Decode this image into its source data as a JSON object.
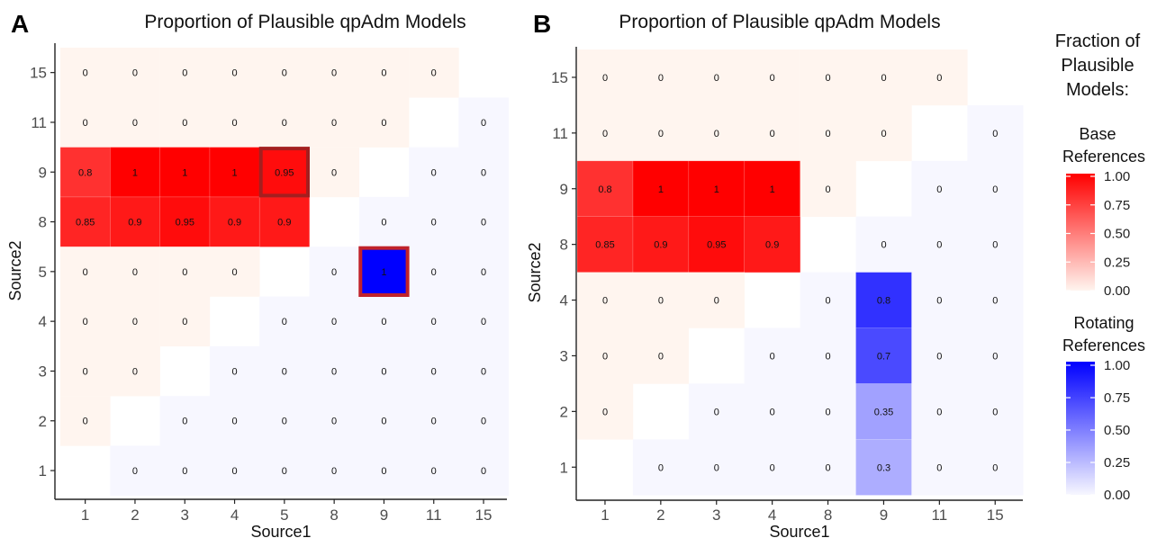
{
  "panels": [
    {
      "letter": "A",
      "chart_data": {
        "type": "heatmap",
        "title": "Proportion of Plausible qpAdm Models",
        "xlabel": "Source1",
        "ylabel": "Source2",
        "x_categories": [
          "1",
          "2",
          "3",
          "4",
          "5",
          "8",
          "9",
          "11",
          "15"
        ],
        "y_categories": [
          "1",
          "2",
          "3",
          "4",
          "5",
          "8",
          "9",
          "11",
          "15"
        ],
        "cells": [
          {
            "x": "1",
            "y": "15",
            "v": 0,
            "s": "base"
          },
          {
            "x": "2",
            "y": "15",
            "v": 0,
            "s": "base"
          },
          {
            "x": "3",
            "y": "15",
            "v": 0,
            "s": "base"
          },
          {
            "x": "4",
            "y": "15",
            "v": 0,
            "s": "base"
          },
          {
            "x": "5",
            "y": "15",
            "v": 0,
            "s": "base"
          },
          {
            "x": "8",
            "y": "15",
            "v": 0,
            "s": "base"
          },
          {
            "x": "9",
            "y": "15",
            "v": 0,
            "s": "base"
          },
          {
            "x": "11",
            "y": "15",
            "v": 0,
            "s": "base"
          },
          {
            "x": "1",
            "y": "11",
            "v": 0,
            "s": "base"
          },
          {
            "x": "2",
            "y": "11",
            "v": 0,
            "s": "base"
          },
          {
            "x": "3",
            "y": "11",
            "v": 0,
            "s": "base"
          },
          {
            "x": "4",
            "y": "11",
            "v": 0,
            "s": "base"
          },
          {
            "x": "5",
            "y": "11",
            "v": 0,
            "s": "base"
          },
          {
            "x": "8",
            "y": "11",
            "v": 0,
            "s": "base"
          },
          {
            "x": "9",
            "y": "11",
            "v": 0,
            "s": "base"
          },
          {
            "x": "15",
            "y": "11",
            "v": 0,
            "s": "rot"
          },
          {
            "x": "1",
            "y": "9",
            "v": 0.8,
            "s": "base"
          },
          {
            "x": "2",
            "y": "9",
            "v": 1,
            "s": "base"
          },
          {
            "x": "3",
            "y": "9",
            "v": 1,
            "s": "base"
          },
          {
            "x": "4",
            "y": "9",
            "v": 1,
            "s": "base"
          },
          {
            "x": "5",
            "y": "9",
            "v": 0.95,
            "s": "base",
            "hl": true
          },
          {
            "x": "8",
            "y": "9",
            "v": 0,
            "s": "base"
          },
          {
            "x": "11",
            "y": "9",
            "v": 0,
            "s": "rot"
          },
          {
            "x": "15",
            "y": "9",
            "v": 0,
            "s": "rot"
          },
          {
            "x": "1",
            "y": "8",
            "v": 0.85,
            "s": "base"
          },
          {
            "x": "2",
            "y": "8",
            "v": 0.9,
            "s": "base"
          },
          {
            "x": "3",
            "y": "8",
            "v": 0.95,
            "s": "base"
          },
          {
            "x": "4",
            "y": "8",
            "v": 0.9,
            "s": "base"
          },
          {
            "x": "5",
            "y": "8",
            "v": 0.9,
            "s": "base"
          },
          {
            "x": "9",
            "y": "8",
            "v": 0,
            "s": "rot"
          },
          {
            "x": "11",
            "y": "8",
            "v": 0,
            "s": "rot"
          },
          {
            "x": "15",
            "y": "8",
            "v": 0,
            "s": "rot"
          },
          {
            "x": "1",
            "y": "5",
            "v": 0,
            "s": "base"
          },
          {
            "x": "2",
            "y": "5",
            "v": 0,
            "s": "base"
          },
          {
            "x": "3",
            "y": "5",
            "v": 0,
            "s": "base"
          },
          {
            "x": "4",
            "y": "5",
            "v": 0,
            "s": "base"
          },
          {
            "x": "8",
            "y": "5",
            "v": 0,
            "s": "rot"
          },
          {
            "x": "9",
            "y": "5",
            "v": 1,
            "s": "rot",
            "hl": true
          },
          {
            "x": "11",
            "y": "5",
            "v": 0,
            "s": "rot"
          },
          {
            "x": "15",
            "y": "5",
            "v": 0,
            "s": "rot"
          },
          {
            "x": "1",
            "y": "4",
            "v": 0,
            "s": "base"
          },
          {
            "x": "2",
            "y": "4",
            "v": 0,
            "s": "base"
          },
          {
            "x": "3",
            "y": "4",
            "v": 0,
            "s": "base"
          },
          {
            "x": "5",
            "y": "4",
            "v": 0,
            "s": "rot"
          },
          {
            "x": "8",
            "y": "4",
            "v": 0,
            "s": "rot"
          },
          {
            "x": "9",
            "y": "4",
            "v": 0,
            "s": "rot"
          },
          {
            "x": "11",
            "y": "4",
            "v": 0,
            "s": "rot"
          },
          {
            "x": "15",
            "y": "4",
            "v": 0,
            "s": "rot"
          },
          {
            "x": "1",
            "y": "3",
            "v": 0,
            "s": "base"
          },
          {
            "x": "2",
            "y": "3",
            "v": 0,
            "s": "base"
          },
          {
            "x": "4",
            "y": "3",
            "v": 0,
            "s": "rot"
          },
          {
            "x": "5",
            "y": "3",
            "v": 0,
            "s": "rot"
          },
          {
            "x": "8",
            "y": "3",
            "v": 0,
            "s": "rot"
          },
          {
            "x": "9",
            "y": "3",
            "v": 0,
            "s": "rot"
          },
          {
            "x": "11",
            "y": "3",
            "v": 0,
            "s": "rot"
          },
          {
            "x": "15",
            "y": "3",
            "v": 0,
            "s": "rot"
          },
          {
            "x": "1",
            "y": "2",
            "v": 0,
            "s": "base"
          },
          {
            "x": "3",
            "y": "2",
            "v": 0,
            "s": "rot"
          },
          {
            "x": "4",
            "y": "2",
            "v": 0,
            "s": "rot"
          },
          {
            "x": "5",
            "y": "2",
            "v": 0,
            "s": "rot"
          },
          {
            "x": "8",
            "y": "2",
            "v": 0,
            "s": "rot"
          },
          {
            "x": "9",
            "y": "2",
            "v": 0,
            "s": "rot"
          },
          {
            "x": "11",
            "y": "2",
            "v": 0,
            "s": "rot"
          },
          {
            "x": "15",
            "y": "2",
            "v": 0,
            "s": "rot"
          },
          {
            "x": "2",
            "y": "1",
            "v": 0,
            "s": "rot"
          },
          {
            "x": "3",
            "y": "1",
            "v": 0,
            "s": "rot"
          },
          {
            "x": "4",
            "y": "1",
            "v": 0,
            "s": "rot"
          },
          {
            "x": "5",
            "y": "1",
            "v": 0,
            "s": "rot"
          },
          {
            "x": "8",
            "y": "1",
            "v": 0,
            "s": "rot"
          },
          {
            "x": "9",
            "y": "1",
            "v": 0,
            "s": "rot"
          },
          {
            "x": "11",
            "y": "1",
            "v": 0,
            "s": "rot"
          },
          {
            "x": "15",
            "y": "1",
            "v": 0,
            "s": "rot"
          }
        ]
      }
    },
    {
      "letter": "B",
      "chart_data": {
        "type": "heatmap",
        "title": "Proportion of Plausible qpAdm Models",
        "xlabel": "Source1",
        "ylabel": "Source2",
        "x_categories": [
          "1",
          "2",
          "3",
          "4",
          "8",
          "9",
          "11",
          "15"
        ],
        "y_categories": [
          "1",
          "2",
          "3",
          "4",
          "8",
          "9",
          "11",
          "15"
        ],
        "cells": [
          {
            "x": "1",
            "y": "15",
            "v": 0,
            "s": "base"
          },
          {
            "x": "2",
            "y": "15",
            "v": 0,
            "s": "base"
          },
          {
            "x": "3",
            "y": "15",
            "v": 0,
            "s": "base"
          },
          {
            "x": "4",
            "y": "15",
            "v": 0,
            "s": "base"
          },
          {
            "x": "8",
            "y": "15",
            "v": 0,
            "s": "base"
          },
          {
            "x": "9",
            "y": "15",
            "v": 0,
            "s": "base"
          },
          {
            "x": "11",
            "y": "15",
            "v": 0,
            "s": "base"
          },
          {
            "x": "1",
            "y": "11",
            "v": 0,
            "s": "base"
          },
          {
            "x": "2",
            "y": "11",
            "v": 0,
            "s": "base"
          },
          {
            "x": "3",
            "y": "11",
            "v": 0,
            "s": "base"
          },
          {
            "x": "4",
            "y": "11",
            "v": 0,
            "s": "base"
          },
          {
            "x": "8",
            "y": "11",
            "v": 0,
            "s": "base"
          },
          {
            "x": "9",
            "y": "11",
            "v": 0,
            "s": "base"
          },
          {
            "x": "15",
            "y": "11",
            "v": 0,
            "s": "rot"
          },
          {
            "x": "1",
            "y": "9",
            "v": 0.8,
            "s": "base"
          },
          {
            "x": "2",
            "y": "9",
            "v": 1,
            "s": "base"
          },
          {
            "x": "3",
            "y": "9",
            "v": 1,
            "s": "base"
          },
          {
            "x": "4",
            "y": "9",
            "v": 1,
            "s": "base"
          },
          {
            "x": "8",
            "y": "9",
            "v": 0,
            "s": "base"
          },
          {
            "x": "11",
            "y": "9",
            "v": 0,
            "s": "rot"
          },
          {
            "x": "15",
            "y": "9",
            "v": 0,
            "s": "rot"
          },
          {
            "x": "1",
            "y": "8",
            "v": 0.85,
            "s": "base"
          },
          {
            "x": "2",
            "y": "8",
            "v": 0.9,
            "s": "base"
          },
          {
            "x": "3",
            "y": "8",
            "v": 0.95,
            "s": "base"
          },
          {
            "x": "4",
            "y": "8",
            "v": 0.9,
            "s": "base"
          },
          {
            "x": "9",
            "y": "8",
            "v": 0,
            "s": "rot"
          },
          {
            "x": "11",
            "y": "8",
            "v": 0,
            "s": "rot"
          },
          {
            "x": "15",
            "y": "8",
            "v": 0,
            "s": "rot"
          },
          {
            "x": "1",
            "y": "4",
            "v": 0,
            "s": "base"
          },
          {
            "x": "2",
            "y": "4",
            "v": 0,
            "s": "base"
          },
          {
            "x": "3",
            "y": "4",
            "v": 0,
            "s": "base"
          },
          {
            "x": "8",
            "y": "4",
            "v": 0,
            "s": "rot"
          },
          {
            "x": "9",
            "y": "4",
            "v": 0.8,
            "s": "rot"
          },
          {
            "x": "11",
            "y": "4",
            "v": 0,
            "s": "rot"
          },
          {
            "x": "15",
            "y": "4",
            "v": 0,
            "s": "rot"
          },
          {
            "x": "1",
            "y": "3",
            "v": 0,
            "s": "base"
          },
          {
            "x": "2",
            "y": "3",
            "v": 0,
            "s": "base"
          },
          {
            "x": "4",
            "y": "3",
            "v": 0,
            "s": "rot"
          },
          {
            "x": "8",
            "y": "3",
            "v": 0,
            "s": "rot"
          },
          {
            "x": "9",
            "y": "3",
            "v": 0.7,
            "s": "rot"
          },
          {
            "x": "11",
            "y": "3",
            "v": 0,
            "s": "rot"
          },
          {
            "x": "15",
            "y": "3",
            "v": 0,
            "s": "rot"
          },
          {
            "x": "1",
            "y": "2",
            "v": 0,
            "s": "base"
          },
          {
            "x": "3",
            "y": "2",
            "v": 0,
            "s": "rot"
          },
          {
            "x": "4",
            "y": "2",
            "v": 0,
            "s": "rot"
          },
          {
            "x": "8",
            "y": "2",
            "v": 0,
            "s": "rot"
          },
          {
            "x": "9",
            "y": "2",
            "v": 0.35,
            "s": "rot"
          },
          {
            "x": "11",
            "y": "2",
            "v": 0,
            "s": "rot"
          },
          {
            "x": "15",
            "y": "2",
            "v": 0,
            "s": "rot"
          },
          {
            "x": "2",
            "y": "1",
            "v": 0,
            "s": "rot"
          },
          {
            "x": "3",
            "y": "1",
            "v": 0,
            "s": "rot"
          },
          {
            "x": "4",
            "y": "1",
            "v": 0,
            "s": "rot"
          },
          {
            "x": "8",
            "y": "1",
            "v": 0,
            "s": "rot"
          },
          {
            "x": "9",
            "y": "1",
            "v": 0.3,
            "s": "rot"
          },
          {
            "x": "11",
            "y": "1",
            "v": 0,
            "s": "rot"
          },
          {
            "x": "15",
            "y": "1",
            "v": 0,
            "s": "rot"
          }
        ]
      }
    }
  ],
  "legend": {
    "title_lines": [
      "Fraction of",
      "Plausible",
      "Models:"
    ],
    "base": {
      "title_lines": [
        "Base",
        "References"
      ],
      "ticks": [
        "1.00",
        "0.75",
        "0.50",
        "0.25",
        "0.00"
      ],
      "color_high": "#ff0000",
      "color_low": "#fff5ef"
    },
    "rotating": {
      "title_lines": [
        "Rotating",
        "References"
      ],
      "ticks": [
        "1.00",
        "0.75",
        "0.50",
        "0.25",
        "0.00"
      ],
      "color_high": "#0000ff",
      "color_low": "#f7f7ff"
    }
  },
  "colors": {
    "highlight_base_border": "#a41f1f",
    "highlight_rot_border": "#c0222a",
    "axis": "#222222",
    "tick_label": "#4d4d4d"
  }
}
